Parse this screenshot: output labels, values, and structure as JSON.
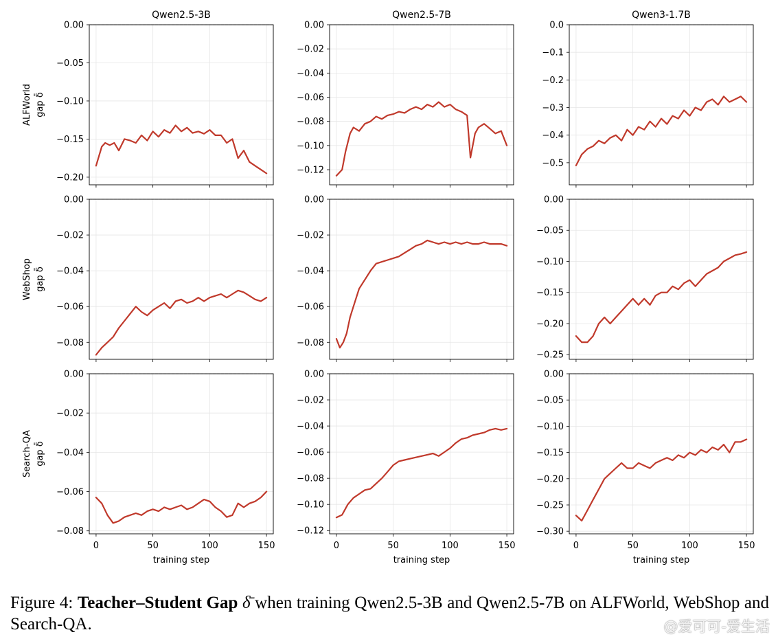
{
  "chart_data": [
    {
      "type": "line",
      "row": "ALFWorld",
      "title": "Qwen2.5-3B",
      "ylabel": "ALFWorld",
      "ylabel2": "gap δ̄",
      "xlabel": "",
      "xlim": [
        -6,
        156
      ],
      "ylim": [
        -0.21,
        0.0
      ],
      "yticks": [
        0.0,
        -0.05,
        -0.1,
        -0.15,
        -0.2
      ],
      "yfmt": 2,
      "xticks": [
        0,
        50,
        100,
        150
      ],
      "grid": true,
      "reference_line": 0.0,
      "color": "#c0392b",
      "series": [
        {
          "x": [
            0,
            5,
            8,
            12,
            16,
            20,
            25,
            30,
            35,
            40,
            45,
            50,
            55,
            60,
            65,
            70,
            75,
            80,
            85,
            90,
            95,
            100,
            105,
            110,
            115,
            120,
            125,
            130,
            135,
            140,
            145,
            150
          ],
          "values": [
            -0.185,
            -0.16,
            -0.155,
            -0.158,
            -0.155,
            -0.165,
            -0.15,
            -0.152,
            -0.155,
            -0.145,
            -0.152,
            -0.14,
            -0.147,
            -0.138,
            -0.142,
            -0.132,
            -0.14,
            -0.135,
            -0.142,
            -0.14,
            -0.143,
            -0.138,
            -0.145,
            -0.145,
            -0.155,
            -0.15,
            -0.175,
            -0.165,
            -0.18,
            -0.185,
            -0.19,
            -0.195
          ]
        }
      ]
    },
    {
      "type": "line",
      "row": "ALFWorld",
      "title": "Qwen2.5-7B",
      "ylabel": "",
      "xlabel": "",
      "xlim": [
        -6,
        156
      ],
      "ylim": [
        -0.1325,
        0.0
      ],
      "yticks": [
        0.0,
        -0.02,
        -0.04,
        -0.06,
        -0.08,
        -0.1,
        -0.12
      ],
      "yfmt": 2,
      "xticks": [
        0,
        50,
        100,
        150
      ],
      "grid": true,
      "reference_line": 0.0,
      "color": "#c0392b",
      "series": [
        {
          "x": [
            0,
            5,
            8,
            12,
            15,
            20,
            25,
            30,
            35,
            40,
            45,
            50,
            55,
            60,
            65,
            70,
            75,
            80,
            85,
            90,
            95,
            100,
            105,
            110,
            115,
            118,
            122,
            125,
            130,
            135,
            140,
            145,
            150
          ],
          "values": [
            -0.125,
            -0.12,
            -0.105,
            -0.09,
            -0.085,
            -0.088,
            -0.082,
            -0.08,
            -0.076,
            -0.078,
            -0.075,
            -0.074,
            -0.072,
            -0.073,
            -0.07,
            -0.068,
            -0.07,
            -0.066,
            -0.068,
            -0.064,
            -0.068,
            -0.066,
            -0.07,
            -0.072,
            -0.075,
            -0.11,
            -0.09,
            -0.085,
            -0.082,
            -0.086,
            -0.09,
            -0.088,
            -0.1
          ]
        }
      ]
    },
    {
      "type": "line",
      "row": "ALFWorld",
      "title": "Qwen3-1.7B",
      "ylabel": "",
      "xlabel": "",
      "xlim": [
        -6,
        156
      ],
      "ylim": [
        -0.58,
        0.0
      ],
      "yticks": [
        0.0,
        -0.1,
        -0.2,
        -0.3,
        -0.4,
        -0.5
      ],
      "yfmt": 1,
      "xticks": [
        0,
        50,
        100,
        150
      ],
      "grid": true,
      "reference_line": 0.0,
      "color": "#c0392b",
      "series": [
        {
          "x": [
            0,
            5,
            10,
            15,
            20,
            25,
            30,
            35,
            40,
            45,
            50,
            55,
            60,
            65,
            70,
            75,
            80,
            85,
            90,
            95,
            100,
            105,
            110,
            115,
            120,
            125,
            130,
            135,
            140,
            145,
            150
          ],
          "values": [
            -0.51,
            -0.47,
            -0.45,
            -0.44,
            -0.42,
            -0.43,
            -0.41,
            -0.4,
            -0.42,
            -0.38,
            -0.4,
            -0.37,
            -0.38,
            -0.35,
            -0.37,
            -0.34,
            -0.36,
            -0.33,
            -0.34,
            -0.31,
            -0.33,
            -0.3,
            -0.31,
            -0.28,
            -0.27,
            -0.29,
            -0.26,
            -0.28,
            -0.27,
            -0.26,
            -0.28
          ]
        }
      ]
    },
    {
      "type": "line",
      "row": "WebShop",
      "title": "",
      "ylabel": "WebShop",
      "ylabel2": "gap δ̄",
      "xlabel": "",
      "xlim": [
        -6,
        156
      ],
      "ylim": [
        -0.0895,
        0.0
      ],
      "yticks": [
        0.0,
        -0.02,
        -0.04,
        -0.06,
        -0.08
      ],
      "yfmt": 2,
      "xticks": [
        0,
        50,
        100,
        150
      ],
      "grid": true,
      "reference_line": 0.0,
      "color": "#c0392b",
      "series": [
        {
          "x": [
            0,
            5,
            10,
            15,
            20,
            25,
            30,
            35,
            40,
            45,
            50,
            55,
            60,
            65,
            70,
            75,
            80,
            85,
            90,
            95,
            100,
            105,
            110,
            115,
            120,
            125,
            130,
            135,
            140,
            145,
            150
          ],
          "values": [
            -0.087,
            -0.083,
            -0.08,
            -0.077,
            -0.072,
            -0.068,
            -0.064,
            -0.06,
            -0.063,
            -0.065,
            -0.062,
            -0.06,
            -0.058,
            -0.061,
            -0.057,
            -0.056,
            -0.058,
            -0.057,
            -0.055,
            -0.057,
            -0.055,
            -0.054,
            -0.053,
            -0.055,
            -0.053,
            -0.051,
            -0.052,
            -0.054,
            -0.056,
            -0.057,
            -0.055
          ]
        }
      ]
    },
    {
      "type": "line",
      "row": "WebShop",
      "title": "",
      "ylabel": "",
      "xlabel": "",
      "xlim": [
        -6,
        156
      ],
      "ylim": [
        -0.0895,
        0.0
      ],
      "yticks": [
        0.0,
        -0.02,
        -0.04,
        -0.06,
        -0.08
      ],
      "yfmt": 2,
      "xticks": [
        0,
        50,
        100,
        150
      ],
      "grid": true,
      "reference_line": 0.0,
      "color": "#c0392b",
      "series": [
        {
          "x": [
            0,
            3,
            6,
            9,
            12,
            15,
            20,
            25,
            30,
            35,
            40,
            45,
            50,
            55,
            60,
            65,
            70,
            75,
            80,
            85,
            90,
            95,
            100,
            105,
            110,
            115,
            120,
            125,
            130,
            135,
            140,
            145,
            150
          ],
          "values": [
            -0.078,
            -0.083,
            -0.08,
            -0.075,
            -0.066,
            -0.06,
            -0.05,
            -0.045,
            -0.04,
            -0.036,
            -0.035,
            -0.034,
            -0.033,
            -0.032,
            -0.03,
            -0.028,
            -0.026,
            -0.025,
            -0.023,
            -0.024,
            -0.025,
            -0.024,
            -0.025,
            -0.024,
            -0.025,
            -0.024,
            -0.025,
            -0.025,
            -0.024,
            -0.025,
            -0.025,
            -0.025,
            -0.026
          ]
        }
      ]
    },
    {
      "type": "line",
      "row": "WebShop",
      "title": "",
      "ylabel": "",
      "xlabel": "",
      "xlim": [
        -6,
        156
      ],
      "ylim": [
        -0.2575,
        0.0
      ],
      "yticks": [
        0.0,
        -0.05,
        -0.1,
        -0.15,
        -0.2,
        -0.25
      ],
      "yfmt": 2,
      "xticks": [
        0,
        50,
        100,
        150
      ],
      "grid": true,
      "reference_line": 0.0,
      "color": "#c0392b",
      "series": [
        {
          "x": [
            0,
            5,
            10,
            15,
            20,
            25,
            30,
            35,
            40,
            45,
            50,
            55,
            60,
            65,
            70,
            75,
            80,
            85,
            90,
            95,
            100,
            105,
            110,
            115,
            120,
            125,
            130,
            135,
            140,
            145,
            150
          ],
          "values": [
            -0.22,
            -0.23,
            -0.23,
            -0.22,
            -0.2,
            -0.19,
            -0.2,
            -0.19,
            -0.18,
            -0.17,
            -0.16,
            -0.17,
            -0.16,
            -0.17,
            -0.155,
            -0.15,
            -0.15,
            -0.14,
            -0.145,
            -0.135,
            -0.13,
            -0.14,
            -0.13,
            -0.12,
            -0.115,
            -0.11,
            -0.1,
            -0.095,
            -0.09,
            -0.088,
            -0.085
          ]
        }
      ]
    },
    {
      "type": "line",
      "row": "Search-QA",
      "title": "",
      "ylabel": "Search-QA",
      "ylabel2": "gap δ̄",
      "xlabel": "training step",
      "xlim": [
        -6,
        156
      ],
      "ylim": [
        -0.0815,
        0.0
      ],
      "yticks": [
        0.0,
        -0.02,
        -0.04,
        -0.06,
        -0.08
      ],
      "yfmt": 2,
      "xticks": [
        0,
        50,
        100,
        150
      ],
      "grid": true,
      "reference_line": 0.0,
      "color": "#c0392b",
      "series": [
        {
          "x": [
            0,
            5,
            10,
            15,
            20,
            25,
            30,
            35,
            40,
            45,
            50,
            55,
            60,
            65,
            70,
            75,
            80,
            85,
            90,
            95,
            100,
            105,
            110,
            115,
            120,
            125,
            130,
            135,
            140,
            145,
            150
          ],
          "values": [
            -0.063,
            -0.066,
            -0.072,
            -0.076,
            -0.075,
            -0.073,
            -0.072,
            -0.071,
            -0.072,
            -0.07,
            -0.069,
            -0.07,
            -0.068,
            -0.069,
            -0.068,
            -0.067,
            -0.069,
            -0.068,
            -0.066,
            -0.064,
            -0.065,
            -0.068,
            -0.07,
            -0.073,
            -0.072,
            -0.066,
            -0.068,
            -0.066,
            -0.065,
            -0.063,
            -0.06
          ]
        }
      ]
    },
    {
      "type": "line",
      "row": "Search-QA",
      "title": "",
      "ylabel": "",
      "xlabel": "training step",
      "xlim": [
        -6,
        156
      ],
      "ylim": [
        -0.1225,
        0.0
      ],
      "yticks": [
        0.0,
        -0.02,
        -0.04,
        -0.06,
        -0.08,
        -0.1,
        -0.12
      ],
      "yfmt": 2,
      "xticks": [
        0,
        50,
        100,
        150
      ],
      "grid": true,
      "reference_line": 0.0,
      "color": "#c0392b",
      "series": [
        {
          "x": [
            0,
            5,
            10,
            15,
            20,
            25,
            30,
            35,
            40,
            45,
            50,
            55,
            60,
            65,
            70,
            75,
            80,
            85,
            90,
            95,
            100,
            105,
            110,
            115,
            120,
            125,
            130,
            135,
            140,
            145,
            150
          ],
          "values": [
            -0.11,
            -0.108,
            -0.1,
            -0.095,
            -0.092,
            -0.089,
            -0.088,
            -0.084,
            -0.08,
            -0.075,
            -0.07,
            -0.067,
            -0.066,
            -0.065,
            -0.064,
            -0.063,
            -0.062,
            -0.061,
            -0.063,
            -0.06,
            -0.057,
            -0.053,
            -0.05,
            -0.049,
            -0.047,
            -0.046,
            -0.045,
            -0.043,
            -0.042,
            -0.043,
            -0.042
          ]
        }
      ]
    },
    {
      "type": "line",
      "row": "Search-QA",
      "title": "",
      "ylabel": "",
      "xlabel": "training step",
      "xlim": [
        -6,
        156
      ],
      "ylim": [
        -0.305,
        0.0
      ],
      "yticks": [
        0.0,
        -0.05,
        -0.1,
        -0.15,
        -0.2,
        -0.25,
        -0.3
      ],
      "yfmt": 2,
      "xticks": [
        0,
        50,
        100,
        150
      ],
      "grid": true,
      "reference_line": 0.0,
      "color": "#c0392b",
      "series": [
        {
          "x": [
            0,
            5,
            10,
            15,
            20,
            25,
            30,
            35,
            40,
            45,
            50,
            55,
            60,
            65,
            70,
            75,
            80,
            85,
            90,
            95,
            100,
            105,
            110,
            115,
            120,
            125,
            130,
            135,
            140,
            145,
            150
          ],
          "values": [
            -0.27,
            -0.28,
            -0.26,
            -0.24,
            -0.22,
            -0.2,
            -0.19,
            -0.18,
            -0.17,
            -0.18,
            -0.18,
            -0.17,
            -0.175,
            -0.18,
            -0.17,
            -0.165,
            -0.16,
            -0.165,
            -0.155,
            -0.16,
            -0.15,
            -0.155,
            -0.145,
            -0.15,
            -0.14,
            -0.145,
            -0.135,
            -0.15,
            -0.13,
            -0.13,
            -0.125
          ]
        }
      ]
    }
  ],
  "caption": {
    "prefix": "Figure 4: ",
    "bold": "Teacher–Student Gap",
    "symbol": "δ̄",
    "rest": " when training Qwen2.5-3B and Qwen2.5-7B on ALFWorld, WebShop and Search-QA."
  },
  "watermark": "@爱可可-爱生活"
}
